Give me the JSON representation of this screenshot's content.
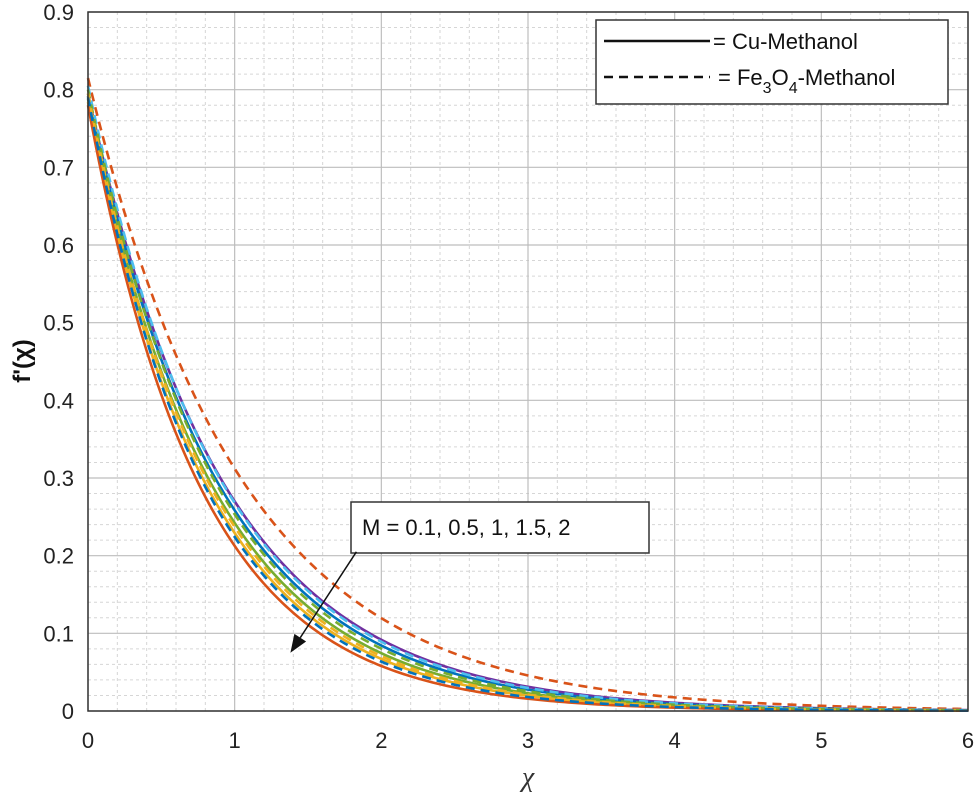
{
  "chart_data": {
    "type": "line",
    "xlabel": "χ",
    "ylabel": "f'(χ)",
    "xlim": [
      0,
      6
    ],
    "ylim": [
      0,
      0.9
    ],
    "xticks": [
      0,
      1,
      2,
      3,
      4,
      5,
      6
    ],
    "yticks": [
      0,
      0.1,
      0.2,
      0.3,
      0.4,
      0.5,
      0.6,
      0.7,
      0.8,
      0.9
    ],
    "grid": true,
    "minor_grid": true,
    "legend": {
      "placement": "top-right",
      "entries": [
        {
          "style": "solid",
          "prefix": "= ",
          "label": "Cu-Methanol"
        },
        {
          "style": "dashed",
          "prefix": "= ",
          "base1": "Fe",
          "sub1": "3",
          "base2": "O",
          "sub2": "4",
          "suffix": "-Methanol"
        }
      ]
    },
    "annotation": {
      "text": "M = 0.1, 0.5, 1, 1.5, 2",
      "arrow": {
        "from": [
          1.83,
          0.205
        ],
        "to": [
          1.38,
          0.075
        ]
      }
    },
    "series": [
      {
        "style": "solid",
        "color": "#7030a0",
        "f0": 0.795,
        "decay": 1.08
      },
      {
        "style": "solid",
        "color": "#0072bd",
        "f0": 0.792,
        "decay": 1.12
      },
      {
        "style": "solid",
        "color": "#77ac30",
        "f0": 0.788,
        "decay": 1.18
      },
      {
        "style": "solid",
        "color": "#edb120",
        "f0": 0.784,
        "decay": 1.23
      },
      {
        "style": "solid",
        "color": "#d95319",
        "f0": 0.78,
        "decay": 1.3
      },
      {
        "style": "dashed",
        "color": "#d95319",
        "f0": 0.815,
        "decay": 0.96
      },
      {
        "style": "dashed",
        "color": "#4dbeee",
        "f0": 0.805,
        "decay": 1.1
      },
      {
        "style": "dashed",
        "color": "#77ac30",
        "f0": 0.8,
        "decay": 1.15
      },
      {
        "style": "dashed",
        "color": "#edb120",
        "f0": 0.795,
        "decay": 1.21
      },
      {
        "style": "dashed",
        "color": "#0072bd",
        "f0": 0.79,
        "decay": 1.26
      }
    ]
  }
}
